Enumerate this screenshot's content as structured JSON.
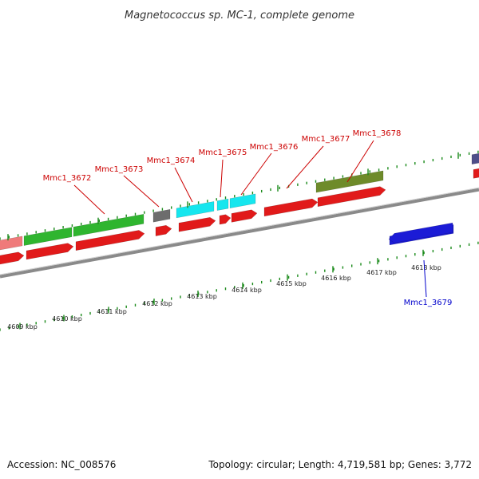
{
  "title": "Magnetococcus sp. MC-1, complete genome",
  "footer": {
    "accession": "Accession: NC_008576",
    "summary": "Topology: circular; Length: 4,719,581 bp; Genes: 3,772"
  },
  "colors": {
    "forward_cds": "#e11a1a",
    "green": "#2fb52f",
    "cyan": "#16e6ee",
    "olive": "#6e8b2a",
    "blue": "#1b1bd6",
    "gray": "#6d6d6d",
    "pink": "#ef7a7a",
    "purple": "#4e4e8a",
    "label_red": "#cc0000",
    "label_blue": "#0000cc",
    "tick_green": "#1a8a1a",
    "backbone": "#8a8a8a"
  },
  "scale": {
    "unit": "kbp",
    "tick_labels": [
      "4609 kbp",
      "4610 kbp",
      "4611 kbp",
      "4612 kbp",
      "4613 kbp",
      "4614 kbp",
      "4615 kbp",
      "4616 kbp",
      "4617 kbp",
      "4618 kbp"
    ]
  },
  "gene_labels": [
    {
      "id": "Mmc1_3672",
      "strand": "forward"
    },
    {
      "id": "Mmc1_3673",
      "strand": "forward"
    },
    {
      "id": "Mmc1_3674",
      "strand": "forward"
    },
    {
      "id": "Mmc1_3675",
      "strand": "forward"
    },
    {
      "id": "Mmc1_3676",
      "strand": "forward"
    },
    {
      "id": "Mmc1_3677",
      "strand": "forward"
    },
    {
      "id": "Mmc1_3678",
      "strand": "forward"
    },
    {
      "id": "Mmc1_3679",
      "strand": "reverse"
    }
  ]
}
